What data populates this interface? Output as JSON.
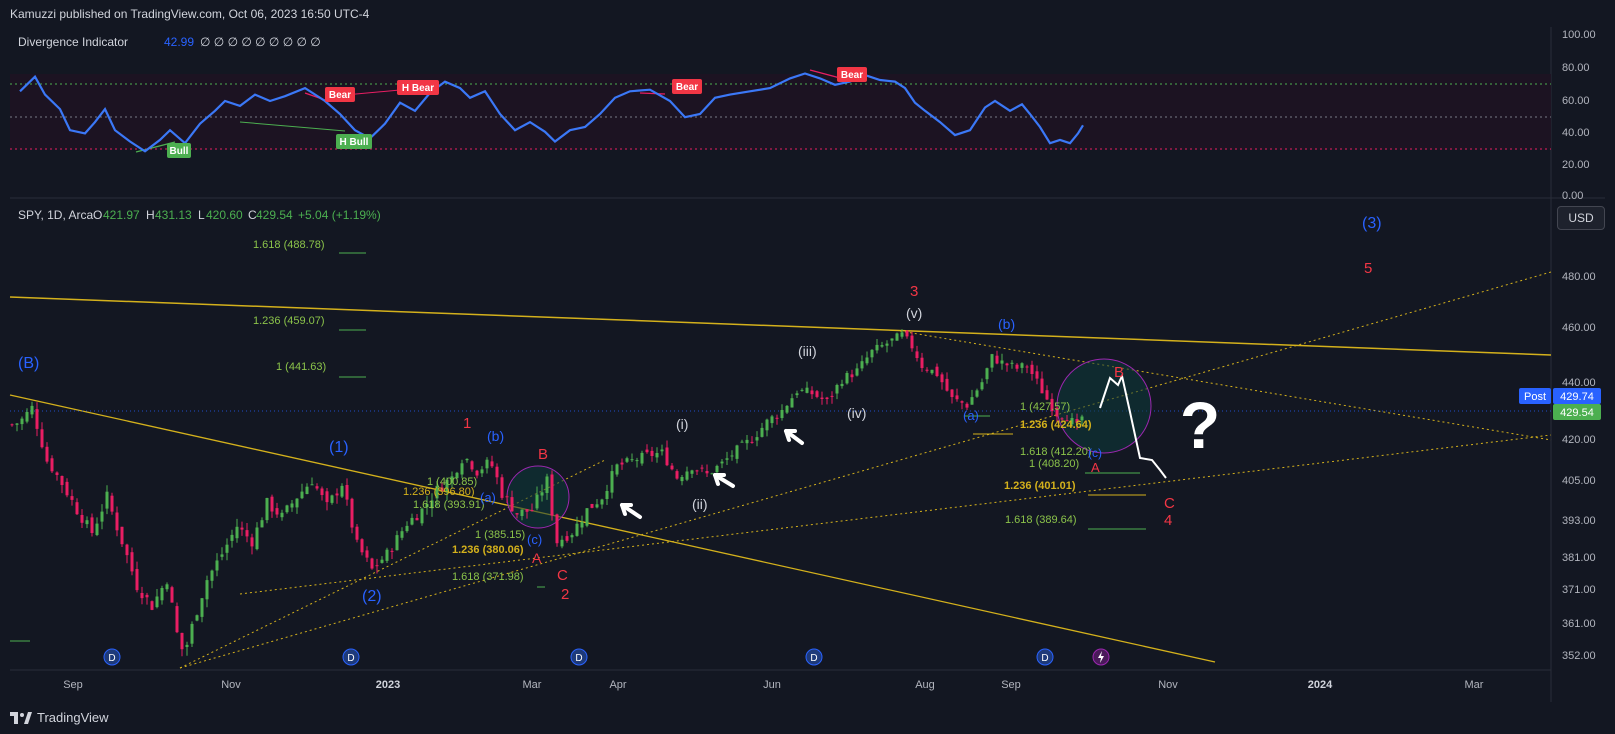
{
  "header": {
    "publish_text": "Kamuzzi published on TradingView.com, Oct 06, 2023 16:50 UTC-4"
  },
  "footer": {
    "brand": "TradingView"
  },
  "colors": {
    "background": "#131722",
    "up": "#4caf50",
    "down": "#e91e63",
    "rsi": "#2962ff",
    "trend": "#d4b11c",
    "green_label": "#8bc34a",
    "red_label": "#f23645",
    "blue_label": "#2962ff"
  },
  "rsi_panel": {
    "title": "Divergence Indicator",
    "value": "42.99",
    "placeholders": "∅ ∅ ∅ ∅ ∅ ∅ ∅ ∅ ∅",
    "axis_ticks": [
      "100.00",
      "80.00",
      "60.00",
      "40.00",
      "20.00",
      "0.00"
    ],
    "tags": [
      {
        "text": "Bull",
        "kind": "bull"
      },
      {
        "text": "Bear",
        "kind": "bear"
      },
      {
        "text": "H Bull",
        "kind": "bull"
      },
      {
        "text": "H Bear",
        "kind": "bear"
      },
      {
        "text": "Bear",
        "kind": "bear"
      },
      {
        "text": "Bear",
        "kind": "bear"
      }
    ]
  },
  "price_panel": {
    "symbol": "SPY, 1D, Arca",
    "ohlc": {
      "o_label": "O",
      "o": "421.97",
      "h_label": "H",
      "h": "431.13",
      "l_label": "L",
      "l": "420.60",
      "c_label": "C",
      "c": "429.54",
      "change": "+5.04 (+1.19%)"
    },
    "currency": "USD",
    "price_ticks": [
      "480.00",
      "460.00",
      "440.00",
      "420.00",
      "405.00",
      "393.00",
      "381.00",
      "371.00",
      "361.00",
      "352.00"
    ],
    "post_label": "Post",
    "post_price": "429.74",
    "last_price": "429.54"
  },
  "chart_data": {
    "type": "candlestick",
    "symbol": "SPY",
    "interval": "1D",
    "x_ticks": [
      "Sep",
      "Nov",
      "2023",
      "Mar",
      "Apr",
      "Jun",
      "Aug",
      "Sep",
      "Nov",
      "2024",
      "Mar"
    ],
    "close_path": [
      [
        0,
        425
      ],
      [
        8,
        426
      ],
      [
        20,
        431
      ],
      [
        35,
        412
      ],
      [
        50,
        404
      ],
      [
        65,
        396
      ],
      [
        80,
        389
      ],
      [
        95,
        400
      ],
      [
        110,
        386
      ],
      [
        125,
        372
      ],
      [
        140,
        366
      ],
      [
        155,
        374
      ],
      [
        165,
        358
      ],
      [
        172,
        352
      ],
      [
        182,
        362
      ],
      [
        195,
        374
      ],
      [
        210,
        382
      ],
      [
        225,
        391
      ],
      [
        240,
        386
      ],
      [
        255,
        398
      ],
      [
        270,
        394
      ],
      [
        285,
        400
      ],
      [
        300,
        405
      ],
      [
        315,
        397
      ],
      [
        330,
        404
      ],
      [
        345,
        385
      ],
      [
        360,
        377
      ],
      [
        375,
        382
      ],
      [
        395,
        392
      ],
      [
        410,
        396
      ],
      [
        425,
        402
      ],
      [
        440,
        406
      ],
      [
        452,
        414
      ],
      [
        465,
        408
      ],
      [
        478,
        412
      ],
      [
        490,
        401
      ],
      [
        505,
        395
      ],
      [
        520,
        396
      ],
      [
        535,
        405
      ],
      [
        545,
        386
      ],
      [
        560,
        389
      ],
      [
        575,
        396
      ],
      [
        590,
        400
      ],
      [
        605,
        410
      ],
      [
        620,
        412
      ],
      [
        635,
        414
      ],
      [
        650,
        415
      ],
      [
        665,
        406
      ],
      [
        680,
        410
      ],
      [
        695,
        407
      ],
      [
        710,
        411
      ],
      [
        725,
        416
      ],
      [
        740,
        420
      ],
      [
        755,
        426
      ],
      [
        770,
        430
      ],
      [
        785,
        437
      ],
      [
        800,
        436
      ],
      [
        815,
        433
      ],
      [
        830,
        441
      ],
      [
        845,
        444
      ],
      [
        860,
        451
      ],
      [
        875,
        454
      ],
      [
        890,
        457
      ],
      [
        900,
        453
      ],
      [
        910,
        446
      ],
      [
        925,
        443
      ],
      [
        940,
        434
      ],
      [
        955,
        432
      ],
      [
        970,
        440
      ],
      [
        980,
        449
      ],
      [
        990,
        447
      ],
      [
        1005,
        445
      ],
      [
        1015,
        446
      ],
      [
        1025,
        440
      ],
      [
        1035,
        434
      ],
      [
        1045,
        429
      ],
      [
        1055,
        428
      ],
      [
        1065,
        424
      ],
      [
        1073,
        430
      ]
    ],
    "rsi_path": [
      [
        10,
        64
      ],
      [
        25,
        73
      ],
      [
        35,
        62
      ],
      [
        50,
        53
      ],
      [
        60,
        40
      ],
      [
        75,
        38
      ],
      [
        85,
        45
      ],
      [
        95,
        53
      ],
      [
        105,
        40
      ],
      [
        120,
        33
      ],
      [
        135,
        27
      ],
      [
        150,
        34
      ],
      [
        160,
        40
      ],
      [
        175,
        32
      ],
      [
        190,
        44
      ],
      [
        205,
        52
      ],
      [
        215,
        58
      ],
      [
        230,
        55
      ],
      [
        245,
        62
      ],
      [
        260,
        58
      ],
      [
        275,
        61
      ],
      [
        295,
        66
      ],
      [
        315,
        58
      ],
      [
        330,
        50
      ],
      [
        345,
        40
      ],
      [
        360,
        35
      ],
      [
        375,
        44
      ],
      [
        390,
        57
      ],
      [
        405,
        52
      ],
      [
        420,
        63
      ],
      [
        435,
        70
      ],
      [
        450,
        66
      ],
      [
        460,
        60
      ],
      [
        475,
        64
      ],
      [
        490,
        50
      ],
      [
        505,
        40
      ],
      [
        520,
        45
      ],
      [
        535,
        39
      ],
      [
        545,
        33
      ],
      [
        560,
        40
      ],
      [
        575,
        42
      ],
      [
        590,
        50
      ],
      [
        605,
        60
      ],
      [
        620,
        64
      ],
      [
        640,
        65
      ],
      [
        660,
        58
      ],
      [
        675,
        48
      ],
      [
        690,
        50
      ],
      [
        705,
        60
      ],
      [
        720,
        62
      ],
      [
        740,
        64
      ],
      [
        760,
        66
      ],
      [
        780,
        72
      ],
      [
        795,
        75
      ],
      [
        810,
        72
      ],
      [
        825,
        68
      ],
      [
        840,
        70
      ],
      [
        855,
        74
      ],
      [
        870,
        71
      ],
      [
        885,
        70
      ],
      [
        895,
        66
      ],
      [
        905,
        57
      ],
      [
        915,
        52
      ],
      [
        930,
        45
      ],
      [
        945,
        37
      ],
      [
        960,
        40
      ],
      [
        975,
        54
      ],
      [
        985,
        58
      ],
      [
        1000,
        52
      ],
      [
        1012,
        56
      ],
      [
        1020,
        50
      ],
      [
        1030,
        42
      ],
      [
        1040,
        32
      ],
      [
        1050,
        34
      ],
      [
        1060,
        32
      ],
      [
        1068,
        38
      ],
      [
        1073,
        43
      ]
    ],
    "wave_labels": [
      {
        "text": "(B)",
        "color": "blue"
      },
      {
        "text": "(1)",
        "color": "blue"
      },
      {
        "text": "(2)",
        "color": "blue"
      },
      {
        "text": "1",
        "color": "red"
      },
      {
        "text": "(b)",
        "color": "blue"
      },
      {
        "text": "(a)",
        "color": "blue"
      },
      {
        "text": "(c)",
        "color": "blue"
      },
      {
        "text": "B",
        "color": "red"
      },
      {
        "text": "A",
        "color": "red"
      },
      {
        "text": "C",
        "color": "red"
      },
      {
        "text": "2",
        "color": "red"
      },
      {
        "text": "(i)",
        "color": "white"
      },
      {
        "text": "(ii)",
        "color": "white"
      },
      {
        "text": "(iii)",
        "color": "white"
      },
      {
        "text": "(iv)",
        "color": "white"
      },
      {
        "text": "(v)",
        "color": "white"
      },
      {
        "text": "3",
        "color": "red"
      },
      {
        "text": "(b)",
        "color": "blue"
      },
      {
        "text": "(a)",
        "color": "blue"
      },
      {
        "text": "B",
        "color": "red"
      },
      {
        "text": "(c)",
        "color": "blue"
      },
      {
        "text": "A",
        "color": "red"
      },
      {
        "text": "C",
        "color": "red"
      },
      {
        "text": "4",
        "color": "red"
      },
      {
        "text": "(3)",
        "color": "blue"
      },
      {
        "text": "5",
        "color": "red"
      }
    ],
    "fib_levels": [
      {
        "text": "1.618 (488.78)",
        "color": "green"
      },
      {
        "text": "1.236 (459.07)",
        "color": "green"
      },
      {
        "text": "1 (441.63)",
        "color": "green"
      },
      {
        "text": "1 (400.85)",
        "color": "green"
      },
      {
        "text": "1.236 (396.80)",
        "color": "gold"
      },
      {
        "text": "1.618 (393.91)",
        "color": "green"
      },
      {
        "text": "1 (385.15)",
        "color": "green"
      },
      {
        "text": "1.236 (380.06)",
        "color": "gold"
      },
      {
        "text": "1.618 (371.98)",
        "color": "green"
      },
      {
        "text": "1 (427.57)",
        "color": "green"
      },
      {
        "text": "1.236 (424.64)",
        "color": "gold"
      },
      {
        "text": "1.618 (412.20)",
        "color": "green"
      },
      {
        "text": "1 (408.20)",
        "color": "green"
      },
      {
        "text": "1.236 (401.01)",
        "color": "gold"
      },
      {
        "text": "1.618 (389.64)",
        "color": "green"
      }
    ],
    "dividend_marker": "D",
    "question_mark": "?"
  }
}
